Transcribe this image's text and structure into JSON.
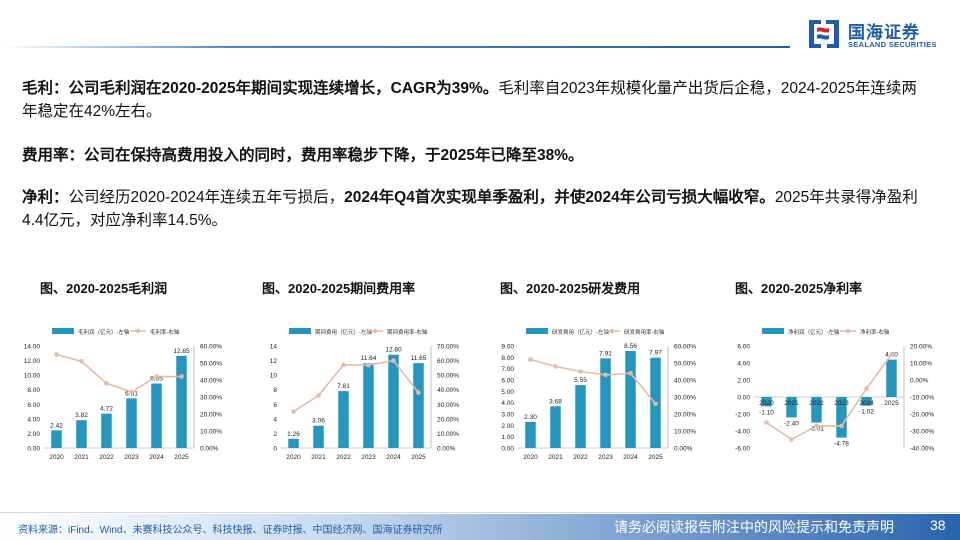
{
  "header": {
    "logo_cn": "国海证券",
    "logo_en": "SEALAND SECURITIES"
  },
  "paragraphs": {
    "p1": [
      {
        "t": "毛利：公司毛利润在2020-2025年期间实现连续增长，CAGR为39%。",
        "b": true
      },
      {
        "t": "毛利率自2023年规模化量产出货后企稳，2024-2025年连续两年稳定在42%左右。",
        "b": false
      }
    ],
    "p2": [
      {
        "t": "费用率：公司在保持高费用投入的同时，费用率稳步下降，于2025年已降至38%。",
        "b": true
      }
    ],
    "p3": [
      {
        "t": "净利：",
        "b": true
      },
      {
        "t": "公司经历2020-2024年连续五年亏损后，",
        "b": false
      },
      {
        "t": "2024年Q4首次实现单季盈利，并使2024年公司亏损大幅收窄。",
        "b": true
      },
      {
        "t": "2025年共录得净盈利4.4亿元，对应净利率14.5%。",
        "b": false
      }
    ]
  },
  "figure_titles": [
    "图、2020-2025毛利润",
    "图、2020-2025期间费用率",
    "图、2020-2025研发费用",
    "图、2020-2025净利率"
  ],
  "footer": {
    "source": "资料来源：iFind、Wind、未赛科技公众号、科技快报、证券时报、中国经济网、国海证券研究所",
    "disclaimer": "请务必阅读报告附注中的风险提示和免责声明",
    "page": "38"
  },
  "colors": {
    "bar": "#2596be",
    "line": "#e8b9a6",
    "brand": "#1f5ea8"
  },
  "chart_data": [
    {
      "type": "bar",
      "categories": [
        "2020",
        "2021",
        "2022",
        "2023",
        "2024",
        "2025"
      ],
      "series": [
        {
          "name": "毛利润（亿元）-左轴",
          "kind": "bar",
          "axis": "left",
          "values": [
            2.42,
            3.82,
            4.72,
            6.81,
            8.85,
            12.65
          ],
          "labels": [
            "2.42",
            "3.82",
            "4.72",
            "6.81",
            "8.85",
            "12.65"
          ]
        },
        {
          "name": "毛利率-右轴",
          "kind": "line",
          "axis": "right",
          "values": [
            55,
            51,
            38,
            33,
            42,
            42
          ]
        }
      ],
      "ylim": [
        0,
        14
      ],
      "yticks": [
        "0.00",
        "2.00",
        "4.00",
        "6.00",
        "8.00",
        "10.00",
        "12.00",
        "14.00"
      ],
      "y2lim": [
        0,
        60
      ],
      "y2ticks": [
        "0.00%",
        "10.00%",
        "20.00%",
        "30.00%",
        "40.00%",
        "50.00%",
        "60.00%"
      ],
      "legend": "top"
    },
    {
      "type": "bar",
      "categories": [
        "2020",
        "2021",
        "2022",
        "2023",
        "2024",
        "2025"
      ],
      "series": [
        {
          "name": "期间费用（亿元）-左轴",
          "kind": "bar",
          "axis": "left",
          "values": [
            1.26,
            3.06,
            7.81,
            11.64,
            12.8,
            11.65
          ],
          "labels": [
            "1.26",
            "3.06",
            "7.81",
            "11.64",
            "12.80",
            "11.65"
          ]
        },
        {
          "name": "期间费用率-右轴",
          "kind": "line",
          "axis": "right",
          "values": [
            25,
            36,
            57,
            57,
            60,
            38
          ]
        }
      ],
      "ylim": [
        0,
        14
      ],
      "yticks": [
        "0",
        "2",
        "4",
        "6",
        "8",
        "10",
        "12",
        "14"
      ],
      "y2lim": [
        0,
        70
      ],
      "y2ticks": [
        "0.00%",
        "10.00%",
        "20.00%",
        "30.00%",
        "40.00%",
        "50.00%",
        "60.00%",
        "70.00%"
      ],
      "legend": "top"
    },
    {
      "type": "bar",
      "categories": [
        "2020",
        "2021",
        "2022",
        "2023",
        "2024",
        "2025"
      ],
      "series": [
        {
          "name": "研发费用（亿元）-左轴",
          "kind": "bar",
          "axis": "left",
          "values": [
            2.3,
            3.68,
            5.55,
            7.91,
            8.56,
            7.97
          ],
          "labels": [
            "2.30",
            "3.68",
            "5.55",
            "7.91",
            "8.56",
            "7.97"
          ]
        },
        {
          "name": "研发费用率-右轴",
          "kind": "line",
          "axis": "right",
          "values": [
            52,
            48,
            45,
            43,
            44,
            26
          ]
        }
      ],
      "ylim": [
        0,
        9
      ],
      "yticks": [
        "0.00",
        "1.00",
        "2.00",
        "3.00",
        "4.00",
        "5.00",
        "6.00",
        "7.00",
        "8.00",
        "9.00"
      ],
      "y2lim": [
        0,
        60
      ],
      "y2ticks": [
        "0.00%",
        "10.00%",
        "20.00%",
        "30.00%",
        "40.00%",
        "50.00%",
        "60.00%"
      ],
      "legend": "top"
    },
    {
      "type": "bar",
      "categories": [
        "2020",
        "2021",
        "2022",
        "2023",
        "2024",
        "2025"
      ],
      "series": [
        {
          "name": "净利润（亿元）-左轴",
          "kind": "bar",
          "axis": "left",
          "values": [
            -1.1,
            -2.4,
            -3.01,
            -4.78,
            -1.02,
            4.4
          ],
          "labels": [
            "-1.10",
            "-2.40",
            "-3.01",
            "-4.78",
            "-1.02",
            "4.40"
          ]
        },
        {
          "name": "净利率-右轴",
          "kind": "line",
          "axis": "right",
          "values": [
            -25,
            -35,
            -27,
            -27,
            -5,
            15
          ]
        }
      ],
      "ylim": [
        -6,
        6
      ],
      "yticks": [
        "-6.00",
        "-4.00",
        "-2.00",
        "0.00",
        "2.00",
        "4.00",
        "6.00"
      ],
      "y2lim": [
        -40,
        20
      ],
      "y2ticks": [
        "-40.00%",
        "-30.00%",
        "-20.00%",
        "-10.00%",
        "0.00%",
        "10.00%",
        "20.00%"
      ],
      "legend": "top"
    }
  ]
}
